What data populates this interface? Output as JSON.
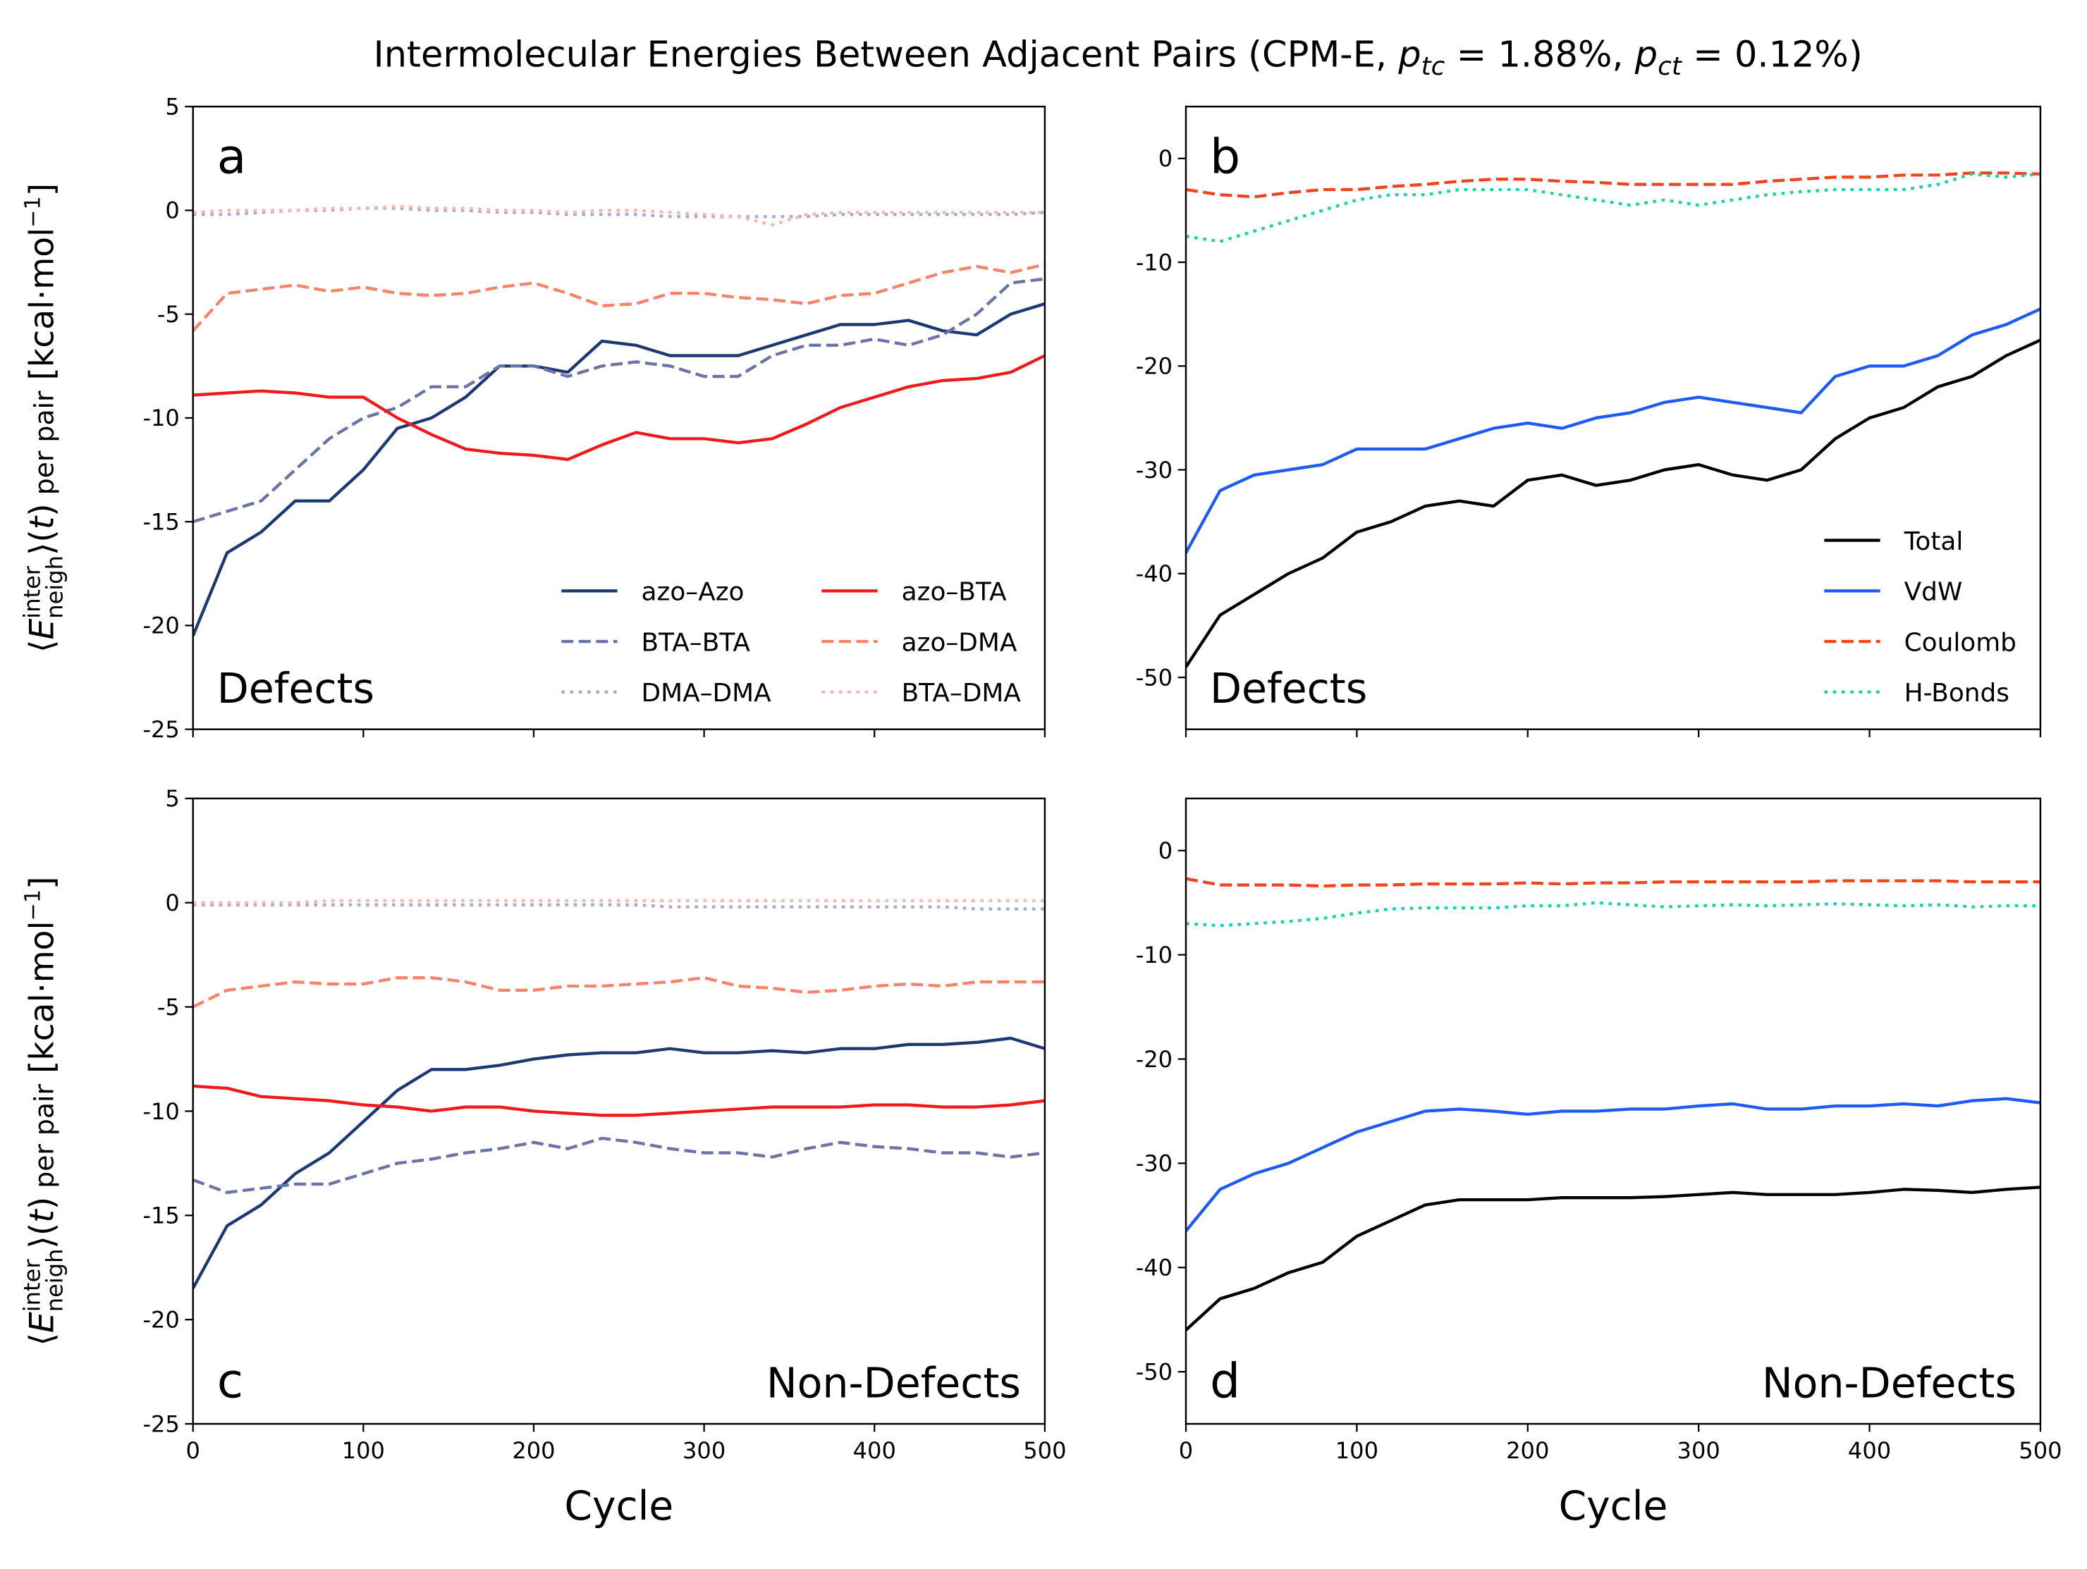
{
  "title": [
    "Intermolecular Energies Between Adjacent Pairs (CPM-E, ",
    "p",
    "tc",
    " = 1.88%, ",
    "p",
    "ct",
    " = 0.12%)"
  ],
  "chart_data": [
    {
      "type": "line",
      "label": "a",
      "label_loc": "upper left",
      "note": "Defects",
      "note_loc": "lower left",
      "ylabel": [
        "⟨",
        "E",
        "neigh",
        "inter",
        "⟩(",
        "t",
        ")",
        " per pair",
        "  [kcal·mol",
        "−1",
        "]"
      ],
      "xlim": [
        0,
        500
      ],
      "xticks": [
        0,
        100,
        200,
        300,
        400,
        500
      ],
      "xtick_labels": false,
      "ylim": [
        -25,
        5
      ],
      "yticks": [
        -25,
        -20,
        -15,
        -10,
        -5,
        0,
        5
      ],
      "legend": "lower right",
      "legend_columns": 2,
      "x": [
        0,
        20,
        40,
        60,
        80,
        100,
        120,
        140,
        160,
        180,
        200,
        220,
        240,
        260,
        280,
        300,
        320,
        340,
        360,
        380,
        400,
        420,
        440,
        460,
        480,
        500
      ],
      "series": [
        {
          "name": "azo–Azo",
          "color": "#1b3a73",
          "style": "solid",
          "values": [
            -20.5,
            -16.5,
            -15.5,
            -14,
            -14,
            -12.5,
            -10.5,
            -10,
            -9,
            -7.5,
            -7.5,
            -7.8,
            -6.3,
            -6.5,
            -7,
            -7,
            -7,
            -6.5,
            -6,
            -5.5,
            -5.5,
            -5.3,
            -5.8,
            -6,
            -5,
            -4.5
          ]
        },
        {
          "name": "BTA–BTA",
          "color": "#6a74a8",
          "style": "dashed",
          "values": [
            -15,
            -14.5,
            -14,
            -12.5,
            -11,
            -10,
            -9.5,
            -8.5,
            -8.5,
            -7.5,
            -7.5,
            -8,
            -7.5,
            -7.3,
            -7.5,
            -8,
            -8,
            -7,
            -6.5,
            -6.5,
            -6.2,
            -6.5,
            -6,
            -5,
            -3.5,
            -3.3
          ]
        },
        {
          "name": "DMA–DMA",
          "color": "#a6abd0",
          "style": "dotted",
          "values": [
            -0.2,
            -0.2,
            -0.1,
            0,
            0,
            0.1,
            0.1,
            0,
            0,
            -0.1,
            -0.1,
            -0.2,
            -0.2,
            -0.2,
            -0.3,
            -0.3,
            -0.3,
            -0.3,
            -0.3,
            -0.2,
            -0.2,
            -0.2,
            -0.2,
            -0.2,
            -0.2,
            -0.1
          ]
        },
        {
          "name": "azo–BTA",
          "color": "#f01a1a",
          "style": "solid",
          "values": [
            -8.9,
            -8.8,
            -8.7,
            -8.8,
            -9,
            -9,
            -10,
            -10.8,
            -11.5,
            -11.7,
            -11.8,
            -12,
            -11.3,
            -10.7,
            -11,
            -11,
            -11.2,
            -11,
            -10.3,
            -9.5,
            -9,
            -8.5,
            -8.2,
            -8.1,
            -7.8,
            -7
          ]
        },
        {
          "name": "azo–DMA",
          "color": "#f7846a",
          "style": "dashed",
          "values": [
            -5.8,
            -4,
            -3.8,
            -3.6,
            -3.9,
            -3.7,
            -4,
            -4.1,
            -4,
            -3.7,
            -3.5,
            -4,
            -4.6,
            -4.5,
            -4,
            -4,
            -4.2,
            -4.3,
            -4.5,
            -4.1,
            -4,
            -3.5,
            -3,
            -2.7,
            -3,
            -2.6
          ]
        },
        {
          "name": "BTA–DMA",
          "color": "#f7b8a8",
          "style": "dotted",
          "values": [
            -0.1,
            0,
            0,
            0,
            0.1,
            0.1,
            0.2,
            0.1,
            0.1,
            0,
            0,
            -0.1,
            0,
            0,
            -0.1,
            -0.2,
            -0.3,
            -0.7,
            -0.2,
            -0.1,
            -0.1,
            -0.1,
            -0.1,
            -0.1,
            -0.1,
            -0.1
          ]
        }
      ]
    },
    {
      "type": "line",
      "label": "b",
      "label_loc": "upper left",
      "note": "Defects",
      "note_loc": "lower left",
      "xlim": [
        0,
        500
      ],
      "xticks": [
        0,
        100,
        200,
        300,
        400,
        500
      ],
      "xtick_labels": false,
      "ylim": [
        -55,
        5
      ],
      "yticks": [
        -50,
        -40,
        -30,
        -20,
        -10,
        0
      ],
      "legend": "lower right",
      "legend_columns": 1,
      "x": [
        0,
        20,
        40,
        60,
        80,
        100,
        120,
        140,
        160,
        180,
        200,
        220,
        240,
        260,
        280,
        300,
        320,
        340,
        360,
        380,
        400,
        420,
        440,
        460,
        480,
        500
      ],
      "series": [
        {
          "name": "Total",
          "color": "#000000",
          "style": "solid",
          "values": [
            -49,
            -44,
            -42,
            -40,
            -38.5,
            -36,
            -35,
            -33.5,
            -33,
            -33.5,
            -31,
            -30.5,
            -31.5,
            -31,
            -30,
            -29.5,
            -30.5,
            -31,
            -30,
            -27,
            -25,
            -24,
            -22,
            -21,
            -19,
            -17.5
          ]
        },
        {
          "name": "VdW",
          "color": "#1d5bf5",
          "style": "solid",
          "values": [
            -38,
            -32,
            -30.5,
            -30,
            -29.5,
            -28,
            -28,
            -28,
            -27,
            -26,
            -25.5,
            -26,
            -25,
            -24.5,
            -23.5,
            -23,
            -23.5,
            -24,
            -24.5,
            -21,
            -20,
            -20,
            -19,
            -17,
            -16,
            -14.5
          ]
        },
        {
          "name": "Coulomb",
          "color": "#f0441f",
          "style": "dashed",
          "values": [
            -3,
            -3.5,
            -3.7,
            -3.3,
            -3,
            -3,
            -2.7,
            -2.5,
            -2.2,
            -2,
            -2,
            -2.2,
            -2.3,
            -2.5,
            -2.5,
            -2.5,
            -2.5,
            -2.2,
            -2,
            -1.8,
            -1.8,
            -1.6,
            -1.6,
            -1.4,
            -1.4,
            -1.5
          ]
        },
        {
          "name": "H-Bonds",
          "color": "#17d4ad",
          "style": "dotted",
          "values": [
            -7.5,
            -8,
            -7,
            -6,
            -5,
            -4,
            -3.5,
            -3.5,
            -3,
            -3,
            -3,
            -3.5,
            -4,
            -4.5,
            -4,
            -4.5,
            -4,
            -3.5,
            -3.2,
            -3,
            -3,
            -3,
            -2.5,
            -1.5,
            -1.8,
            -1.5
          ]
        }
      ]
    },
    {
      "type": "line",
      "label": "c",
      "label_loc": "lower left",
      "note": "Non-Defects",
      "note_loc": "lower right",
      "ylabel": [
        "⟨",
        "E",
        "neigh",
        "inter",
        "⟩(",
        "t",
        ")",
        " per pair",
        "  [kcal·mol",
        "−1",
        "]"
      ],
      "xlabel": "Cycle",
      "xlim": [
        0,
        500
      ],
      "xticks": [
        0,
        100,
        200,
        300,
        400,
        500
      ],
      "xtick_labels": true,
      "ylim": [
        -25,
        5
      ],
      "yticks": [
        -25,
        -20,
        -15,
        -10,
        -5,
        0,
        5
      ],
      "x": [
        0,
        20,
        40,
        60,
        80,
        100,
        120,
        140,
        160,
        180,
        200,
        220,
        240,
        260,
        280,
        300,
        320,
        340,
        360,
        380,
        400,
        420,
        440,
        460,
        480,
        500
      ],
      "series": [
        {
          "color": "#1b3a73",
          "style": "solid",
          "values": [
            -18.5,
            -15.5,
            -14.5,
            -13,
            -12,
            -10.5,
            -9,
            -8,
            -8,
            -7.8,
            -7.5,
            -7.3,
            -7.2,
            -7.2,
            -7,
            -7.2,
            -7.2,
            -7.1,
            -7.2,
            -7,
            -7,
            -6.8,
            -6.8,
            -6.7,
            -6.5,
            -7
          ]
        },
        {
          "color": "#6a74a8",
          "style": "dashed",
          "values": [
            -13.3,
            -13.9,
            -13.7,
            -13.5,
            -13.5,
            -13,
            -12.5,
            -12.3,
            -12,
            -11.8,
            -11.5,
            -11.8,
            -11.3,
            -11.5,
            -11.8,
            -12,
            -12,
            -12.2,
            -11.8,
            -11.5,
            -11.7,
            -11.8,
            -12,
            -12,
            -12.2,
            -12
          ]
        },
        {
          "color": "#a6abd0",
          "style": "dotted",
          "values": [
            -0.1,
            -0.1,
            -0.1,
            -0.1,
            -0.1,
            -0.1,
            -0.1,
            -0.1,
            -0.1,
            -0.1,
            -0.1,
            -0.1,
            -0.1,
            -0.1,
            -0.2,
            -0.2,
            -0.2,
            -0.2,
            -0.2,
            -0.2,
            -0.2,
            -0.2,
            -0.2,
            -0.3,
            -0.3,
            -0.3
          ]
        },
        {
          "color": "#f01a1a",
          "style": "solid",
          "values": [
            -8.8,
            -8.9,
            -9.3,
            -9.4,
            -9.5,
            -9.7,
            -9.8,
            -10,
            -9.8,
            -9.8,
            -10,
            -10.1,
            -10.2,
            -10.2,
            -10.1,
            -10,
            -9.9,
            -9.8,
            -9.8,
            -9.8,
            -9.7,
            -9.7,
            -9.8,
            -9.8,
            -9.7,
            -9.5
          ]
        },
        {
          "color": "#f7846a",
          "style": "dashed",
          "values": [
            -5,
            -4.2,
            -4,
            -3.8,
            -3.9,
            -3.9,
            -3.6,
            -3.6,
            -3.8,
            -4.2,
            -4.2,
            -4,
            -4,
            -3.9,
            -3.8,
            -3.6,
            -4,
            -4.1,
            -4.3,
            -4.2,
            -4,
            -3.9,
            -4,
            -3.8,
            -3.8,
            -3.8
          ]
        },
        {
          "color": "#f7b8a8",
          "style": "dotted",
          "values": [
            0,
            0,
            0,
            0,
            0.1,
            0.1,
            0.1,
            0.1,
            0.1,
            0.1,
            0.1,
            0.1,
            0.1,
            0.1,
            0.1,
            0.1,
            0.1,
            0.1,
            0.1,
            0.1,
            0.1,
            0.1,
            0.1,
            0.1,
            0.1,
            0.1
          ]
        }
      ]
    },
    {
      "type": "line",
      "label": "d",
      "label_loc": "lower left",
      "note": "Non-Defects",
      "note_loc": "lower right",
      "xlabel": "Cycle",
      "xlim": [
        0,
        500
      ],
      "xticks": [
        0,
        100,
        200,
        300,
        400,
        500
      ],
      "xtick_labels": true,
      "ylim": [
        -55,
        5
      ],
      "yticks": [
        -50,
        -40,
        -30,
        -20,
        -10,
        0
      ],
      "x": [
        0,
        20,
        40,
        60,
        80,
        100,
        120,
        140,
        160,
        180,
        200,
        220,
        240,
        260,
        280,
        300,
        320,
        340,
        360,
        380,
        400,
        420,
        440,
        460,
        480,
        500
      ],
      "series": [
        {
          "color": "#000000",
          "style": "solid",
          "values": [
            -46,
            -43,
            -42,
            -40.5,
            -39.5,
            -37,
            -35.5,
            -34,
            -33.5,
            -33.5,
            -33.5,
            -33.3,
            -33.3,
            -33.3,
            -33.2,
            -33,
            -32.8,
            -33,
            -33,
            -33,
            -32.8,
            -32.5,
            -32.6,
            -32.8,
            -32.5,
            -32.3
          ]
        },
        {
          "color": "#1d5bf5",
          "style": "solid",
          "values": [
            -36.5,
            -32.5,
            -31,
            -30,
            -28.5,
            -27,
            -26,
            -25,
            -24.8,
            -25,
            -25.3,
            -25,
            -25,
            -24.8,
            -24.8,
            -24.5,
            -24.3,
            -24.8,
            -24.8,
            -24.5,
            -24.5,
            -24.3,
            -24.5,
            -24,
            -23.8,
            -24.2
          ]
        },
        {
          "color": "#f0441f",
          "style": "dashed",
          "values": [
            -2.7,
            -3.3,
            -3.3,
            -3.3,
            -3.4,
            -3.3,
            -3.3,
            -3.2,
            -3.2,
            -3.2,
            -3.1,
            -3.2,
            -3.1,
            -3.1,
            -3,
            -3,
            -3,
            -3,
            -3,
            -2.9,
            -2.9,
            -2.9,
            -2.9,
            -3,
            -3,
            -3
          ]
        },
        {
          "color": "#17d4ad",
          "style": "dotted",
          "values": [
            -7,
            -7.2,
            -7,
            -6.8,
            -6.5,
            -6,
            -5.6,
            -5.5,
            -5.5,
            -5.5,
            -5.3,
            -5.3,
            -5,
            -5.2,
            -5.4,
            -5.3,
            -5.2,
            -5.3,
            -5.2,
            -5.1,
            -5.2,
            -5.3,
            -5.2,
            -5.4,
            -5.3,
            -5.3
          ]
        }
      ]
    }
  ]
}
